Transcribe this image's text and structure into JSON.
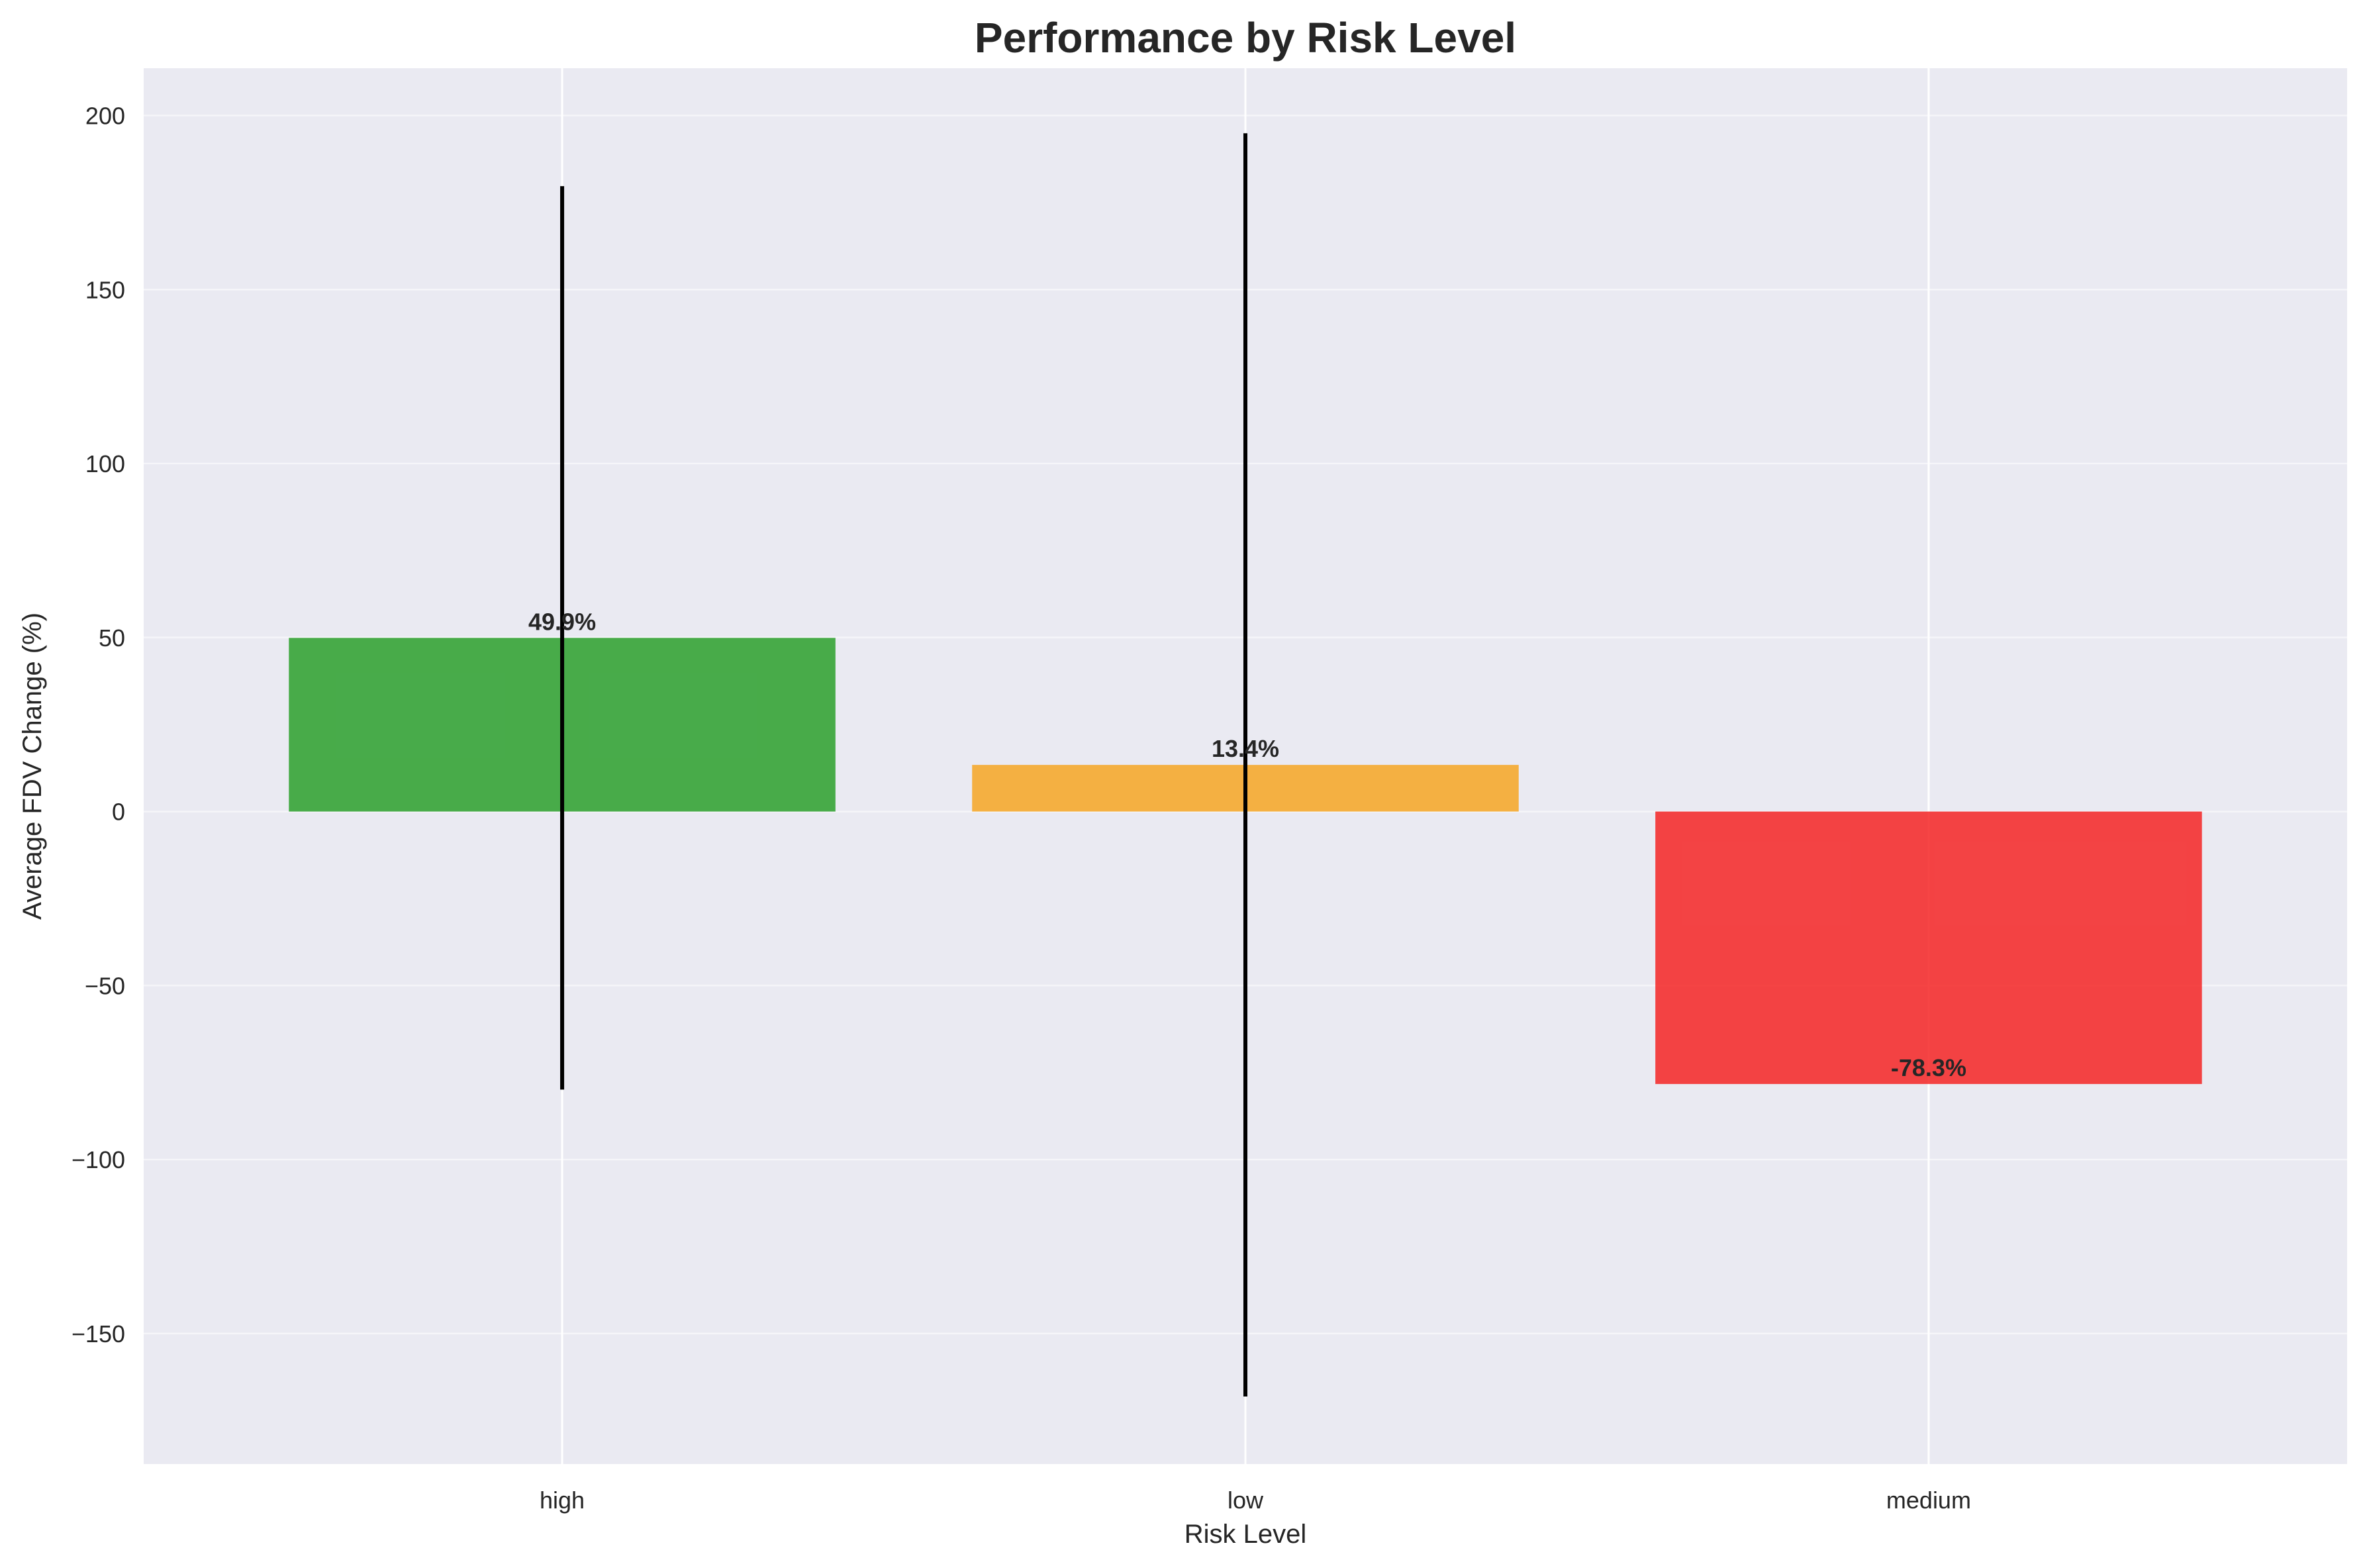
{
  "chart_data": {
    "type": "bar",
    "title": "Performance by Risk Level",
    "xlabel": "Risk Level",
    "ylabel": "Average FDV Change (%)",
    "categories": [
      "high",
      "low",
      "medium"
    ],
    "values": [
      49.9,
      13.4,
      -78.3
    ],
    "error_bars": [
      129.8,
      181.5,
      0
    ],
    "data_labels": [
      "49.9%",
      "13.4%",
      "-78.3%"
    ],
    "bar_colors": [
      "#2ca02c",
      "#f6a623",
      "#f52525"
    ],
    "yticks": [
      -150,
      -100,
      -50,
      0,
      50,
      100,
      150,
      200
    ],
    "ytick_labels": [
      "−150",
      "−100",
      "−50",
      "0",
      "50",
      "100",
      "150",
      "200"
    ],
    "ylim": [
      -187.5,
      213.6
    ],
    "grid": true,
    "legend": "none",
    "colors": {
      "plot_background": "#eaeaf2",
      "grid": "#ffffff",
      "error_bar": "#000000",
      "text": "#262626"
    }
  }
}
